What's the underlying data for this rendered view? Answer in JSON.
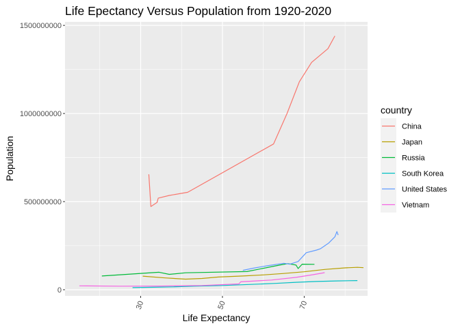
{
  "chart_data": {
    "type": "line",
    "title": "Life Epectancy Versus Population from 1920-2020",
    "xlabel": "Life Expectancy",
    "ylabel": "Population",
    "xlim": [
      11.5,
      85.5
    ],
    "ylim": [
      -35000000,
      1520000000
    ],
    "x_ticks": [
      30,
      50,
      70
    ],
    "y_ticks": [
      0,
      500000000,
      1000000000,
      1500000000
    ],
    "y_tick_labels": [
      "0",
      "500000000",
      "1000000000",
      "1500000000"
    ],
    "grid": true,
    "legend": {
      "title": "country",
      "position": "right"
    },
    "series": [
      {
        "name": "China",
        "color": "#F8766D",
        "x": [
          32,
          32.5,
          34,
          34.3,
          37,
          41.5,
          62.5,
          65.8,
          68.8,
          71.8,
          75.8,
          77.5
        ],
        "y": [
          655000000,
          472000000,
          495000000,
          520000000,
          535000000,
          553000000,
          827000000,
          1000000000,
          1180000000,
          1290000000,
          1368000000,
          1440000000
        ]
      },
      {
        "name": "Japan",
        "color": "#B79F00",
        "x": [
          30.5,
          36,
          41,
          45,
          49,
          55,
          60,
          65,
          70,
          75,
          80,
          83,
          84.5
        ],
        "y": [
          77000000,
          67000000,
          60000000,
          64000000,
          72000000,
          78000000,
          84000000,
          92000000,
          102000000,
          115000000,
          124000000,
          127000000,
          125000000
        ]
      },
      {
        "name": "Russia",
        "color": "#00BA38",
        "x": [
          20.5,
          34.5,
          37,
          41,
          56,
          64,
          66,
          68,
          68.5,
          69.5,
          72.5
        ],
        "y": [
          78000000,
          99000000,
          87000000,
          96000000,
          103000000,
          140000000,
          148000000,
          140000000,
          120000000,
          145000000,
          144000000
        ]
      },
      {
        "name": "South Korea",
        "color": "#00BFC4",
        "x": [
          28,
          33,
          38,
          43,
          50,
          57,
          63,
          68,
          73,
          78,
          83
        ],
        "y": [
          12000000,
          14000000,
          16000000,
          20000000,
          24000000,
          30000000,
          36000000,
          42000000,
          47000000,
          50000000,
          52000000
        ]
      },
      {
        "name": "United States",
        "color": "#619CFF",
        "x": [
          55,
          57.5,
          61,
          65,
          66.5,
          68.5,
          70.5,
          73,
          74,
          76,
          77.5,
          78,
          78.3
        ],
        "y": [
          110000000,
          122000000,
          136000000,
          150000000,
          145000000,
          160000000,
          210000000,
          225000000,
          233000000,
          265000000,
          300000000,
          330000000,
          310000000
        ]
      },
      {
        "name": "Vietnam",
        "color": "#F564E3",
        "x": [
          15,
          25,
          35,
          45,
          54,
          54.5,
          62,
          68,
          72,
          75
        ],
        "y": [
          22000000,
          20000000,
          21000000,
          24000000,
          33000000,
          45000000,
          55000000,
          70000000,
          85000000,
          97000000
        ]
      }
    ]
  }
}
